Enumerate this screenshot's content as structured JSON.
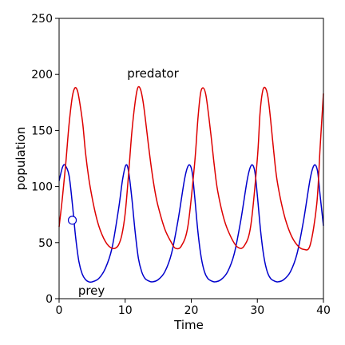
{
  "chart_data": {
    "type": "line",
    "title": "",
    "xlabel": "Time",
    "ylabel": "population",
    "xlim": [
      0,
      40
    ],
    "ylim": [
      0,
      250
    ],
    "xticks": [
      0,
      10,
      20,
      30,
      40
    ],
    "yticks": [
      0,
      50,
      100,
      150,
      200,
      250
    ],
    "grid": false,
    "legend": "none",
    "annotations": [
      {
        "text": "predator",
        "x": 14.2,
        "y": 201
      },
      {
        "text": "prey",
        "x": 4.9,
        "y": 7
      }
    ],
    "marker": {
      "x": 2.0,
      "y": 70,
      "shape": "open-circle"
    },
    "series": [
      {
        "color": "#0000cc",
        "x": [
          0,
          0.5,
          0.9,
          1.5,
          2.0,
          2.5,
          3.0,
          3.5,
          4.0,
          4.5,
          5.0,
          6.0,
          7.0,
          8.0,
          9.0,
          9.6,
          10.1,
          10.5,
          11.0,
          11.5,
          12.0,
          12.5,
          13.0,
          13.5,
          14.1,
          15.0,
          16.0,
          17.0,
          18.0,
          19.0,
          19.6,
          20.1,
          20.5,
          21.0,
          21.5,
          22.0,
          22.5,
          23.0,
          23.6,
          24.5,
          25.5,
          26.5,
          27.5,
          28.5,
          29.1,
          29.6,
          30.0,
          30.5,
          31.0,
          31.5,
          32.0,
          32.5,
          33.1,
          34.0,
          35.0,
          36.0,
          37.0,
          38.0,
          38.6,
          39.1,
          39.5,
          40.0
        ],
        "y": [
          105,
          117,
          119,
          110,
          85,
          55,
          33,
          22,
          17,
          15,
          15,
          18,
          27,
          45,
          80,
          106,
          119,
          114,
          90,
          60,
          36,
          24,
          18,
          16,
          15,
          17,
          24,
          40,
          70,
          107,
          119,
          114,
          92,
          60,
          37,
          24,
          18,
          16,
          15,
          17,
          24,
          40,
          70,
          107,
          119,
          114,
          92,
          60,
          37,
          24,
          18,
          16,
          15,
          17,
          24,
          40,
          70,
          107,
          119,
          114,
          92,
          65
        ]
      },
      {
        "color": "#dd0000",
        "x": [
          0,
          0.5,
          1.0,
          1.5,
          2.0,
          2.4,
          2.8,
          3.2,
          3.6,
          4.0,
          4.5,
          5.0,
          5.5,
          6.0,
          6.5,
          7.0,
          7.5,
          8.0,
          8.5,
          9.0,
          9.5,
          10.0,
          10.5,
          11.0,
          11.5,
          11.9,
          12.3,
          12.7,
          13.1,
          13.5,
          14.0,
          14.5,
          15.0,
          16.0,
          17.0,
          17.6,
          18.5,
          19.5,
          20.5,
          21.0,
          21.4,
          21.8,
          22.2,
          22.6,
          23.0,
          23.5,
          24.0,
          25.0,
          26.0,
          27.0,
          28.0,
          29.0,
          30.0,
          30.4,
          30.8,
          31.2,
          31.6,
          32.0,
          32.5,
          33.0,
          34.0,
          35.0,
          36.0,
          37.0,
          38.0,
          39.0,
          39.5,
          40.0
        ],
        "y": [
          64,
          90,
          120,
          155,
          180,
          188,
          185,
          172,
          155,
          130,
          107,
          90,
          76,
          65,
          57,
          51,
          47,
          45,
          45,
          48,
          57,
          76,
          110,
          148,
          175,
          188,
          187,
          176,
          158,
          138,
          115,
          96,
          82,
          62,
          50,
          45,
          47,
          65,
          120,
          160,
          183,
          188,
          182,
          165,
          145,
          118,
          96,
          70,
          55,
          46,
          47,
          65,
          125,
          165,
          185,
          188,
          180,
          160,
          130,
          105,
          76,
          58,
          48,
          44,
          48,
          85,
          135,
          183
        ]
      }
    ]
  }
}
